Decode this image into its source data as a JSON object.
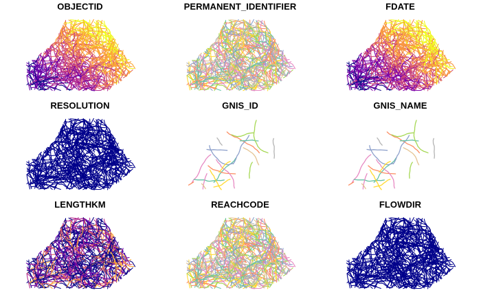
{
  "panels": [
    {
      "title": "OBJECTID",
      "palette": "viridis-like",
      "colors": [
        "#0d0887",
        "#6a00a8",
        "#b12a90",
        "#e16462",
        "#fca636",
        "#f0f921"
      ]
    },
    {
      "title": "PERMANENT_IDENTIFIER",
      "palette": "qualitative",
      "colors": [
        "#66c2a5",
        "#fc8d62",
        "#8da0cb",
        "#e78ac3",
        "#a6d854",
        "#ffd92f",
        "#e5c494",
        "#b3b3b3"
      ]
    },
    {
      "title": "FDATE",
      "palette": "plasma",
      "colors": [
        "#0d0887",
        "#7e03a8",
        "#cc4778",
        "#f89540",
        "#f0f921"
      ]
    },
    {
      "title": "RESOLUTION",
      "palette": "single",
      "colors": [
        "#00008b"
      ]
    },
    {
      "title": "GNIS_ID",
      "palette": "qualitative",
      "colors": [
        "#66c2a5",
        "#fc8d62",
        "#8da0cb",
        "#e78ac3",
        "#a6d854",
        "#ffd92f",
        "#e5c494",
        "#b3b3b3"
      ]
    },
    {
      "title": "GNIS_NAME",
      "palette": "qualitative",
      "colors": [
        "#66c2a5",
        "#fc8d62",
        "#8da0cb",
        "#e78ac3",
        "#a6d854",
        "#ffd92f",
        "#e5c494",
        "#b3b3b3"
      ]
    },
    {
      "title": "LENGTHKM",
      "palette": "plasma",
      "colors": [
        "#0d0887",
        "#6a00a8",
        "#b12a90",
        "#e16462",
        "#fca636"
      ]
    },
    {
      "title": "REACHCODE",
      "palette": "qualitative",
      "colors": [
        "#66c2a5",
        "#fc8d62",
        "#8da0cb",
        "#e78ac3",
        "#a6d854",
        "#ffd92f",
        "#e5c494",
        "#b3b3b3"
      ]
    },
    {
      "title": "FLOWDIR",
      "palette": "single",
      "colors": [
        "#00008b"
      ]
    }
  ]
}
